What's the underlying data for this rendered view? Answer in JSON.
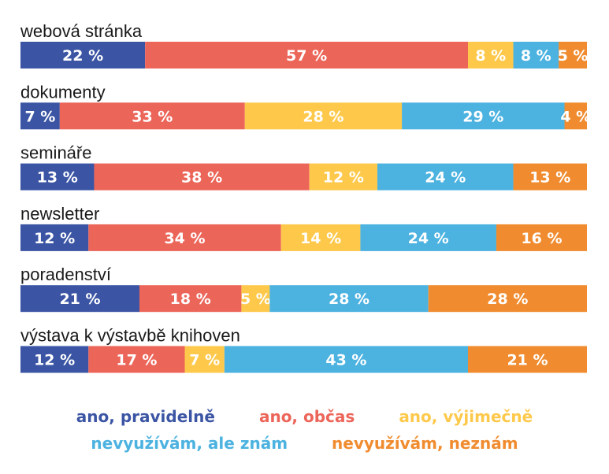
{
  "chart_data": {
    "type": "bar",
    "orientation": "horizontal",
    "stacked": true,
    "normalized_percent": true,
    "categories": [
      "webová stránka",
      "dokumenty",
      "semináře",
      "newsletter",
      "poradenství",
      "výstava k výstavbě knihoven"
    ],
    "series": [
      {
        "name": "ano, pravidelně",
        "color": "#3b55a4",
        "values": [
          22,
          7,
          13,
          12,
          21,
          12
        ]
      },
      {
        "name": "ano, občas",
        "color": "#ec6559",
        "values": [
          57,
          33,
          38,
          34,
          18,
          17
        ]
      },
      {
        "name": "ano, výjimečně",
        "color": "#fec94b",
        "values": [
          8,
          28,
          12,
          14,
          5,
          7
        ]
      },
      {
        "name": "nevyužívám, ale znám",
        "color": "#4cb2e0",
        "values": [
          8,
          29,
          24,
          24,
          28,
          43
        ]
      },
      {
        "name": "nevyužívám, neznám",
        "color": "#f08c2f",
        "values": [
          5,
          4,
          13,
          16,
          28,
          21
        ]
      }
    ],
    "value_suffix": " %",
    "legend_position": "bottom",
    "grid": false,
    "label_color": "#ffffff"
  }
}
